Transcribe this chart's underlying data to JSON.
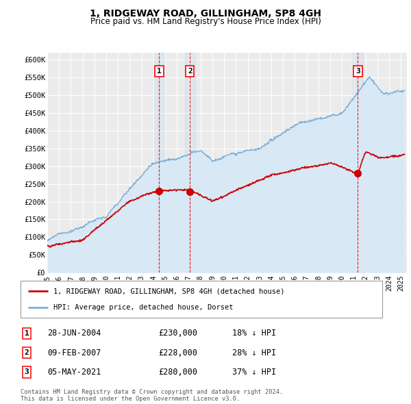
{
  "title": "1, RIDGEWAY ROAD, GILLINGHAM, SP8 4GH",
  "subtitle": "Price paid vs. HM Land Registry's House Price Index (HPI)",
  "ylim": [
    0,
    620000
  ],
  "yticks": [
    0,
    50000,
    100000,
    150000,
    200000,
    250000,
    300000,
    350000,
    400000,
    450000,
    500000,
    550000,
    600000
  ],
  "ytick_labels": [
    "£0",
    "£50K",
    "£100K",
    "£150K",
    "£200K",
    "£250K",
    "£300K",
    "£350K",
    "£400K",
    "£450K",
    "£500K",
    "£550K",
    "£600K"
  ],
  "bg_color": "#ffffff",
  "plot_bg_color": "#ebebeb",
  "grid_color": "#ffffff",
  "hpi_color": "#7ab0d8",
  "hpi_fill_color": "#d8e8f5",
  "price_color": "#cc0000",
  "purchases": [
    {
      "date_x": 2004.49,
      "price": 230000,
      "label": "1"
    },
    {
      "date_x": 2007.1,
      "price": 228000,
      "label": "2"
    },
    {
      "date_x": 2021.34,
      "price": 280000,
      "label": "3"
    }
  ],
  "legend_entries": [
    {
      "label": "1, RIDGEWAY ROAD, GILLINGHAM, SP8 4GH (detached house)",
      "color": "#cc0000"
    },
    {
      "label": "HPI: Average price, detached house, Dorset",
      "color": "#7ab0d8"
    }
  ],
  "table_rows": [
    {
      "num": "1",
      "date": "28-JUN-2004",
      "price": "£230,000",
      "hpi": "18% ↓ HPI"
    },
    {
      "num": "2",
      "date": "09-FEB-2007",
      "price": "£228,000",
      "hpi": "28% ↓ HPI"
    },
    {
      "num": "3",
      "date": "05-MAY-2021",
      "price": "£280,000",
      "hpi": "37% ↓ HPI"
    }
  ],
  "footnote": "Contains HM Land Registry data © Crown copyright and database right 2024.\nThis data is licensed under the Open Government Licence v3.0.",
  "xmin": 1995.0,
  "xmax": 2025.5
}
